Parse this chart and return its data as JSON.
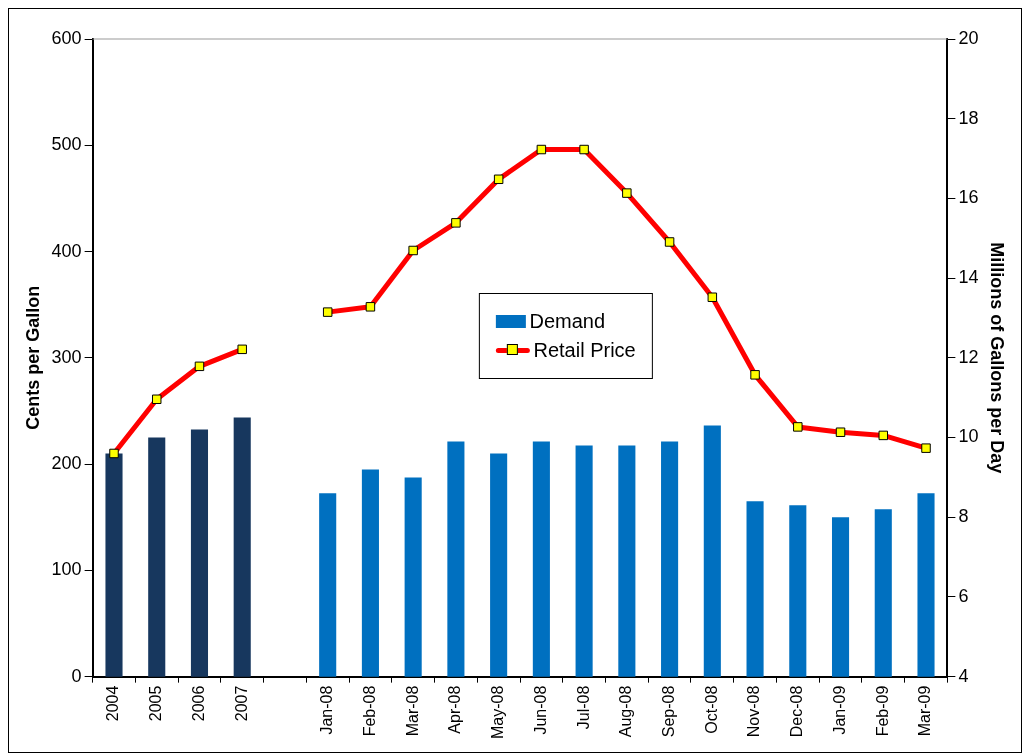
{
  "chart_data": {
    "type": "bar",
    "categories": [
      "2004",
      "2005",
      "2006",
      "2007",
      null,
      "Jan-08",
      "Feb-08",
      "Mar-08",
      "Apr-08",
      "May-08",
      "Jun-08",
      "Jul-08",
      "Aug-08",
      "Sep-08",
      "Oct-08",
      "Nov-08",
      "Dec-08",
      "Jan-09",
      "Feb-09",
      "Mar-09"
    ],
    "ylabel": "Cents per Gallon",
    "y2label": "Millions of Gallons per Day",
    "ylim": [
      0,
      600
    ],
    "yticks": [
      0,
      100,
      200,
      300,
      400,
      500,
      600
    ],
    "y2lim": [
      4,
      20
    ],
    "y2ticks": [
      4,
      6,
      8,
      10,
      12,
      14,
      16,
      18,
      20
    ],
    "grid": false,
    "legend": "center",
    "series": [
      {
        "name": "Demand",
        "axis": "y2",
        "color": "#0070c0",
        "colors": [
          "#17375e",
          "#17375e",
          "#17375e",
          "#17375e",
          null,
          "#0070c0",
          "#0070c0",
          "#0070c0",
          "#0070c0",
          "#0070c0",
          "#0070c0",
          "#0070c0",
          "#0070c0",
          "#0070c0",
          "#0070c0",
          "#0070c0",
          "#0070c0",
          "#0070c0",
          "#0070c0",
          "#0070c0"
        ],
        "values": [
          9.6,
          10.0,
          10.2,
          10.5,
          null,
          8.6,
          9.2,
          9.0,
          9.9,
          9.6,
          9.9,
          9.8,
          9.8,
          9.9,
          10.3,
          8.4,
          8.3,
          8.0,
          8.2,
          8.6
        ]
      },
      {
        "name": "Retail Price",
        "type": "line",
        "axis": "y",
        "color": "#ff0000",
        "marker": "square",
        "values": [
          210,
          261,
          292,
          308,
          null,
          343,
          348,
          401,
          427,
          468,
          496,
          496,
          455,
          409,
          357,
          284,
          235,
          230,
          227,
          215
        ]
      }
    ]
  }
}
